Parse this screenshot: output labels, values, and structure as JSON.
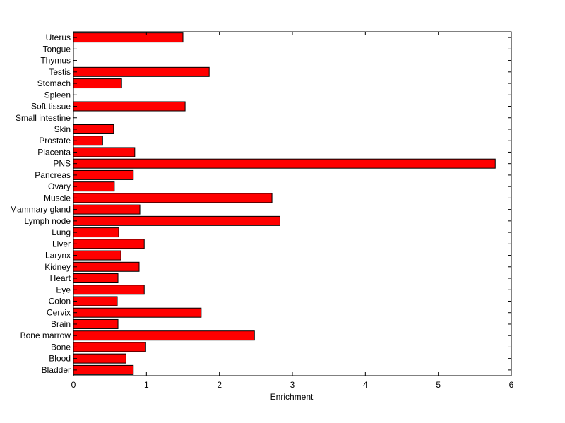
{
  "chart_data": {
    "type": "bar",
    "orientation": "horizontal",
    "title": "",
    "xlabel": "Enrichment",
    "ylabel": "",
    "xlim": [
      0,
      6
    ],
    "xticks": [
      0,
      1,
      2,
      3,
      4,
      5,
      6
    ],
    "grid": false,
    "legend": "none",
    "bar_color": "#ff0000",
    "bar_edge_color": "#000000",
    "categories": [
      "Bladder",
      "Blood",
      "Bone",
      "Bone marrow",
      "Brain",
      "Cervix",
      "Colon",
      "Eye",
      "Heart",
      "Kidney",
      "Larynx",
      "Liver",
      "Lung",
      "Lymph node",
      "Mammary gland",
      "Muscle",
      "Ovary",
      "Pancreas",
      "PNS",
      "Placenta",
      "Prostate",
      "Skin",
      "Small intestine",
      "Soft tissue",
      "Spleen",
      "Stomach",
      "Testis",
      "Thymus",
      "Tongue",
      "Uterus"
    ],
    "values": [
      0.82,
      0.72,
      0.99,
      2.48,
      0.61,
      1.75,
      0.6,
      0.97,
      0.61,
      0.9,
      0.65,
      0.97,
      0.62,
      2.83,
      0.91,
      2.72,
      0.56,
      0.82,
      5.78,
      0.84,
      0.4,
      0.55,
      0,
      1.53,
      0,
      0.66,
      1.86,
      0,
      0,
      1.5
    ]
  }
}
